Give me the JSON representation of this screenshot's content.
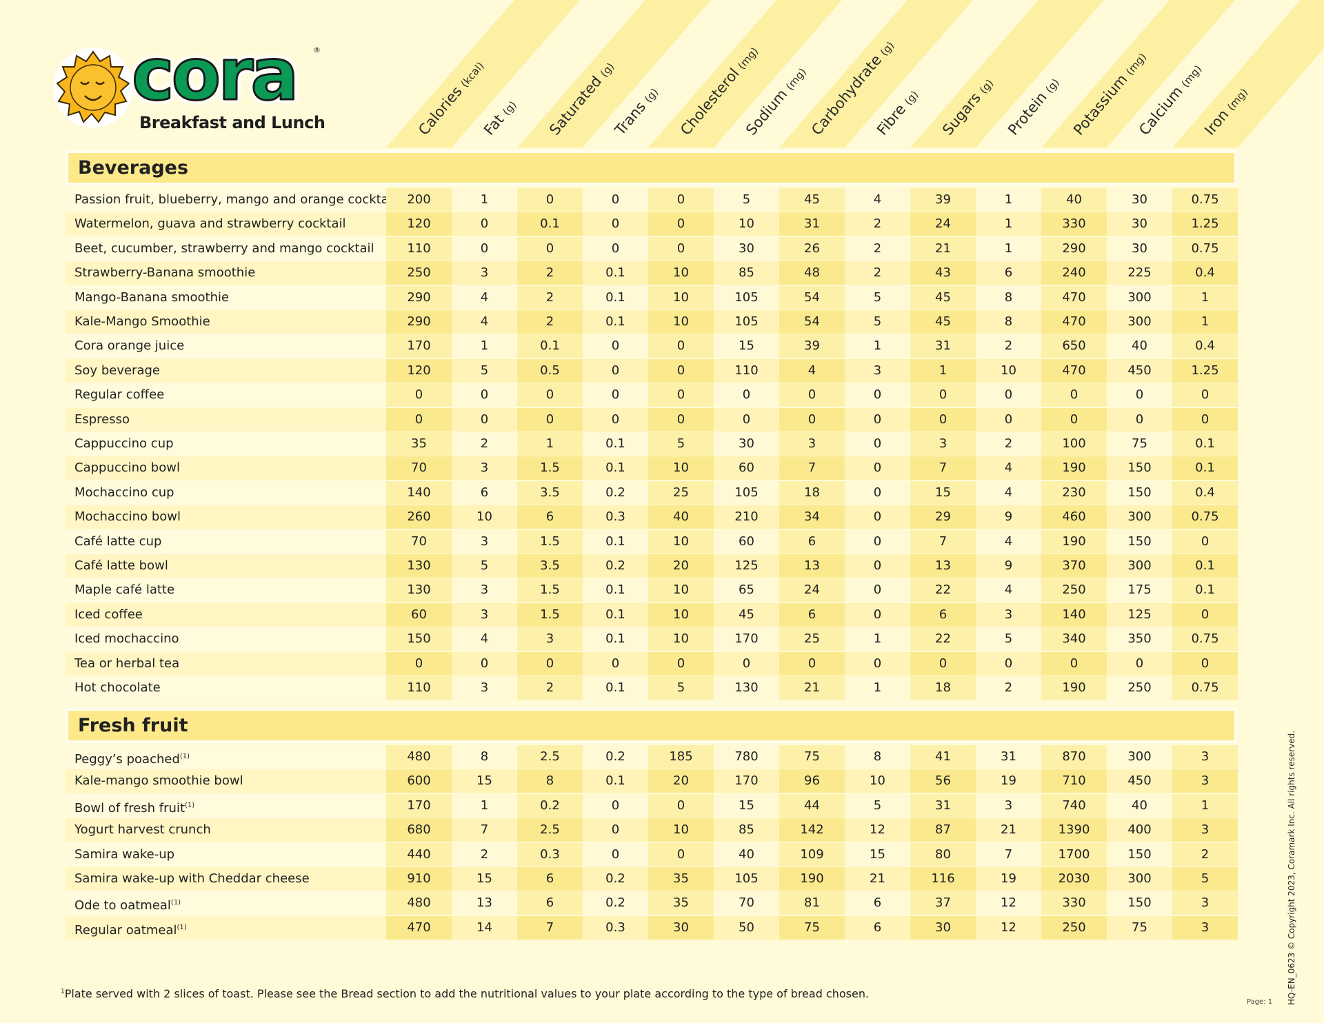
{
  "brand": {
    "logo_text": "cora",
    "registered": "®",
    "tagline": "Breakfast and Lunch"
  },
  "columns": [
    {
      "label": "Calories",
      "unit": "(kcal)"
    },
    {
      "label": "Fat",
      "unit": "(g)"
    },
    {
      "label": "Saturated",
      "unit": "(g)"
    },
    {
      "label": "Trans",
      "unit": "(g)"
    },
    {
      "label": "Cholesterol",
      "unit": "(mg)"
    },
    {
      "label": "Sodium",
      "unit": "(mg)"
    },
    {
      "label": "Carbohydrate",
      "unit": "(g)"
    },
    {
      "label": "Fibre",
      "unit": "(g)"
    },
    {
      "label": "Sugars",
      "unit": "(g)"
    },
    {
      "label": "Protein",
      "unit": "(g)"
    },
    {
      "label": "Potassium",
      "unit": "(mg)"
    },
    {
      "label": "Calcium",
      "unit": "(mg)"
    },
    {
      "label": "Iron",
      "unit": "(mg)"
    }
  ],
  "sections": [
    {
      "title": "Beverages",
      "rows": [
        {
          "name": "Passion fruit, blueberry, mango and orange cocktail",
          "values": [
            "200",
            "1",
            "0",
            "0",
            "0",
            "5",
            "45",
            "4",
            "39",
            "1",
            "40",
            "30",
            "0.75"
          ]
        },
        {
          "name": "Watermelon, guava and strawberry cocktail",
          "values": [
            "120",
            "0",
            "0.1",
            "0",
            "0",
            "10",
            "31",
            "2",
            "24",
            "1",
            "330",
            "30",
            "1.25"
          ]
        },
        {
          "name": "Beet, cucumber, strawberry and mango cocktail",
          "values": [
            "110",
            "0",
            "0",
            "0",
            "0",
            "30",
            "26",
            "2",
            "21",
            "1",
            "290",
            "30",
            "0.75"
          ]
        },
        {
          "name": "Strawberry-Banana smoothie",
          "values": [
            "250",
            "3",
            "2",
            "0.1",
            "10",
            "85",
            "48",
            "2",
            "43",
            "6",
            "240",
            "225",
            "0.4"
          ]
        },
        {
          "name": "Mango-Banana smoothie",
          "values": [
            "290",
            "4",
            "2",
            "0.1",
            "10",
            "105",
            "54",
            "5",
            "45",
            "8",
            "470",
            "300",
            "1"
          ]
        },
        {
          "name": "Kale-Mango Smoothie",
          "values": [
            "290",
            "4",
            "2",
            "0.1",
            "10",
            "105",
            "54",
            "5",
            "45",
            "8",
            "470",
            "300",
            "1"
          ]
        },
        {
          "name": "Cora orange juice",
          "values": [
            "170",
            "1",
            "0.1",
            "0",
            "0",
            "15",
            "39",
            "1",
            "31",
            "2",
            "650",
            "40",
            "0.4"
          ]
        },
        {
          "name": "Soy beverage",
          "values": [
            "120",
            "5",
            "0.5",
            "0",
            "0",
            "110",
            "4",
            "3",
            "1",
            "10",
            "470",
            "450",
            "1.25"
          ]
        },
        {
          "name": "Regular coffee",
          "values": [
            "0",
            "0",
            "0",
            "0",
            "0",
            "0",
            "0",
            "0",
            "0",
            "0",
            "0",
            "0",
            "0"
          ]
        },
        {
          "name": "Espresso",
          "values": [
            "0",
            "0",
            "0",
            "0",
            "0",
            "0",
            "0",
            "0",
            "0",
            "0",
            "0",
            "0",
            "0"
          ]
        },
        {
          "name": "Cappuccino cup",
          "values": [
            "35",
            "2",
            "1",
            "0.1",
            "5",
            "30",
            "3",
            "0",
            "3",
            "2",
            "100",
            "75",
            "0.1"
          ]
        },
        {
          "name": "Cappuccino bowl",
          "values": [
            "70",
            "3",
            "1.5",
            "0.1",
            "10",
            "60",
            "7",
            "0",
            "7",
            "4",
            "190",
            "150",
            "0.1"
          ]
        },
        {
          "name": "Mochaccino cup",
          "values": [
            "140",
            "6",
            "3.5",
            "0.2",
            "25",
            "105",
            "18",
            "0",
            "15",
            "4",
            "230",
            "150",
            "0.4"
          ]
        },
        {
          "name": "Mochaccino bowl",
          "values": [
            "260",
            "10",
            "6",
            "0.3",
            "40",
            "210",
            "34",
            "0",
            "29",
            "9",
            "460",
            "300",
            "0.75"
          ]
        },
        {
          "name": "Café latte cup",
          "values": [
            "70",
            "3",
            "1.5",
            "0.1",
            "10",
            "60",
            "6",
            "0",
            "7",
            "4",
            "190",
            "150",
            "0"
          ]
        },
        {
          "name": "Café latte bowl",
          "values": [
            "130",
            "5",
            "3.5",
            "0.2",
            "20",
            "125",
            "13",
            "0",
            "13",
            "9",
            "370",
            "300",
            "0.1"
          ]
        },
        {
          "name": "Maple café latte",
          "values": [
            "130",
            "3",
            "1.5",
            "0.1",
            "10",
            "65",
            "24",
            "0",
            "22",
            "4",
            "250",
            "175",
            "0.1"
          ]
        },
        {
          "name": "Iced coffee",
          "values": [
            "60",
            "3",
            "1.5",
            "0.1",
            "10",
            "45",
            "6",
            "0",
            "6",
            "3",
            "140",
            "125",
            "0"
          ]
        },
        {
          "name": "Iced mochaccino",
          "values": [
            "150",
            "4",
            "3",
            "0.1",
            "10",
            "170",
            "25",
            "1",
            "22",
            "5",
            "340",
            "350",
            "0.75"
          ]
        },
        {
          "name": "Tea or herbal tea",
          "values": [
            "0",
            "0",
            "0",
            "0",
            "0",
            "0",
            "0",
            "0",
            "0",
            "0",
            "0",
            "0",
            "0"
          ]
        },
        {
          "name": "Hot chocolate",
          "values": [
            "110",
            "3",
            "2",
            "0.1",
            "5",
            "130",
            "21",
            "1",
            "18",
            "2",
            "190",
            "250",
            "0.75"
          ]
        }
      ]
    },
    {
      "title": "Fresh fruit",
      "rows": [
        {
          "name": "Peggy’s poached",
          "note": "(1)",
          "values": [
            "480",
            "8",
            "2.5",
            "0.2",
            "185",
            "780",
            "75",
            "8",
            "41",
            "31",
            "870",
            "300",
            "3"
          ]
        },
        {
          "name": "Kale-mango smoothie bowl",
          "values": [
            "600",
            "15",
            "8",
            "0.1",
            "20",
            "170",
            "96",
            "10",
            "56",
            "19",
            "710",
            "450",
            "3"
          ]
        },
        {
          "name": "Bowl of fresh fruit",
          "note": "(1)",
          "values": [
            "170",
            "1",
            "0.2",
            "0",
            "0",
            "15",
            "44",
            "5",
            "31",
            "3",
            "740",
            "40",
            "1"
          ]
        },
        {
          "name": "Yogurt harvest crunch",
          "values": [
            "680",
            "7",
            "2.5",
            "0",
            "10",
            "85",
            "142",
            "12",
            "87",
            "21",
            "1390",
            "400",
            "3"
          ]
        },
        {
          "name": "Samira wake-up",
          "values": [
            "440",
            "2",
            "0.3",
            "0",
            "0",
            "40",
            "109",
            "15",
            "80",
            "7",
            "1700",
            "150",
            "2"
          ]
        },
        {
          "name": "Samira wake-up with Cheddar cheese",
          "values": [
            "910",
            "15",
            "6",
            "0.2",
            "35",
            "105",
            "190",
            "21",
            "116",
            "19",
            "2030",
            "300",
            "5"
          ]
        },
        {
          "name": "Ode to oatmeal",
          "note": "(1)",
          "values": [
            "480",
            "13",
            "6",
            "0.2",
            "35",
            "70",
            "81",
            "6",
            "37",
            "12",
            "330",
            "150",
            "3"
          ]
        },
        {
          "name": "Regular oatmeal",
          "note": "(1)",
          "values": [
            "470",
            "14",
            "7",
            "0.3",
            "30",
            "50",
            "75",
            "6",
            "30",
            "12",
            "250",
            "75",
            "3"
          ]
        }
      ]
    }
  ],
  "footnote": {
    "marker": "1",
    "text": "Plate served with 2 slices of toast. Please see the Bread section to add the nutritional values to your plate according to the type of bread chosen."
  },
  "copyright": "HQ-EN_0623 © Copyright 2023, Coramark Inc. All rights reserved.",
  "page": "Page: 1",
  "colors": {
    "brand_green": "#0a9a55",
    "sun": "#f8b61c",
    "section_fill": "#fde98a",
    "background": "#fffbd8"
  }
}
